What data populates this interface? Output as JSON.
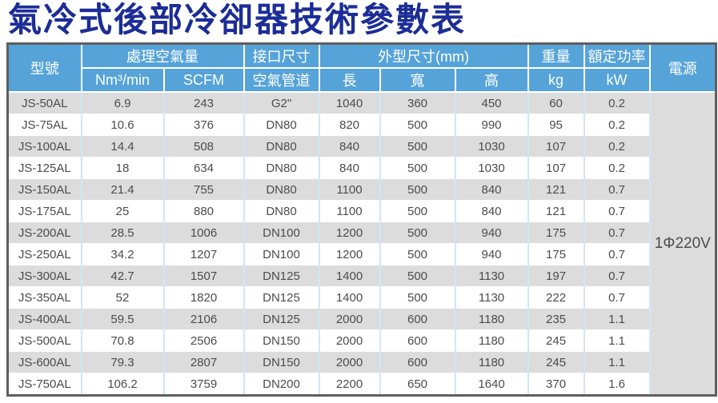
{
  "title": "氣冷式後部冷卻器技術參數表",
  "colors": {
    "title_text": "#1c2d96",
    "header_bg": "#55a3d9",
    "header_text": "#ffffff",
    "stripe_row": "#dcdcdc",
    "body_text": "#4c4c4c",
    "grid_line": "#cfe7f7",
    "outer_border": "#5e5e5e"
  },
  "table": {
    "header": {
      "model": "型號",
      "air_flow": "處理空氣量",
      "air_flow_nm3": "Nm³/min",
      "air_flow_scfm": "SCFM",
      "connection": "接口尺寸",
      "connection_pipe": "空氣管道",
      "dimensions": "外型尺寸(mm)",
      "dim_length": "長",
      "dim_width": "寬",
      "dim_height": "高",
      "weight": "重量",
      "weight_unit": "kg",
      "rated_power": "額定功率",
      "rated_power_unit": "kW",
      "power_supply": "電源"
    },
    "power_supply_value": "1Φ220V",
    "rows": [
      [
        "JS-50AL",
        "6.9",
        "243",
        "G2\"",
        "1040",
        "360",
        "450",
        "60",
        "0.2"
      ],
      [
        "JS-75AL",
        "10.6",
        "376",
        "DN80",
        "820",
        "500",
        "990",
        "95",
        "0.2"
      ],
      [
        "JS-100AL",
        "14.4",
        "508",
        "DN80",
        "840",
        "500",
        "1030",
        "107",
        "0.2"
      ],
      [
        "JS-125AL",
        "18",
        "634",
        "DN80",
        "840",
        "500",
        "1030",
        "107",
        "0.2"
      ],
      [
        "JS-150AL",
        "21.4",
        "755",
        "DN80",
        "1100",
        "500",
        "840",
        "121",
        "0.7"
      ],
      [
        "JS-175AL",
        "25",
        "880",
        "DN80",
        "1100",
        "500",
        "840",
        "121",
        "0.7"
      ],
      [
        "JS-200AL",
        "28.5",
        "1006",
        "DN100",
        "1200",
        "500",
        "940",
        "175",
        "0.7"
      ],
      [
        "JS-250AL",
        "34.2",
        "1207",
        "DN100",
        "1200",
        "500",
        "940",
        "175",
        "0.7"
      ],
      [
        "JS-300AL",
        "42.7",
        "1507",
        "DN125",
        "1400",
        "500",
        "1130",
        "197",
        "0.7"
      ],
      [
        "JS-350AL",
        "52",
        "1820",
        "DN125",
        "1400",
        "500",
        "1130",
        "222",
        "0.7"
      ],
      [
        "JS-400AL",
        "59.5",
        "2106",
        "DN125",
        "2000",
        "600",
        "1180",
        "235",
        "1.1"
      ],
      [
        "JS-500AL",
        "70.8",
        "2506",
        "DN150",
        "2000",
        "600",
        "1180",
        "245",
        "1.1"
      ],
      [
        "JS-600AL",
        "79.3",
        "2807",
        "DN150",
        "2000",
        "600",
        "1180",
        "245",
        "1.1"
      ],
      [
        "JS-750AL",
        "106.2",
        "3759",
        "DN200",
        "2200",
        "650",
        "1640",
        "370",
        "1.6"
      ]
    ]
  }
}
